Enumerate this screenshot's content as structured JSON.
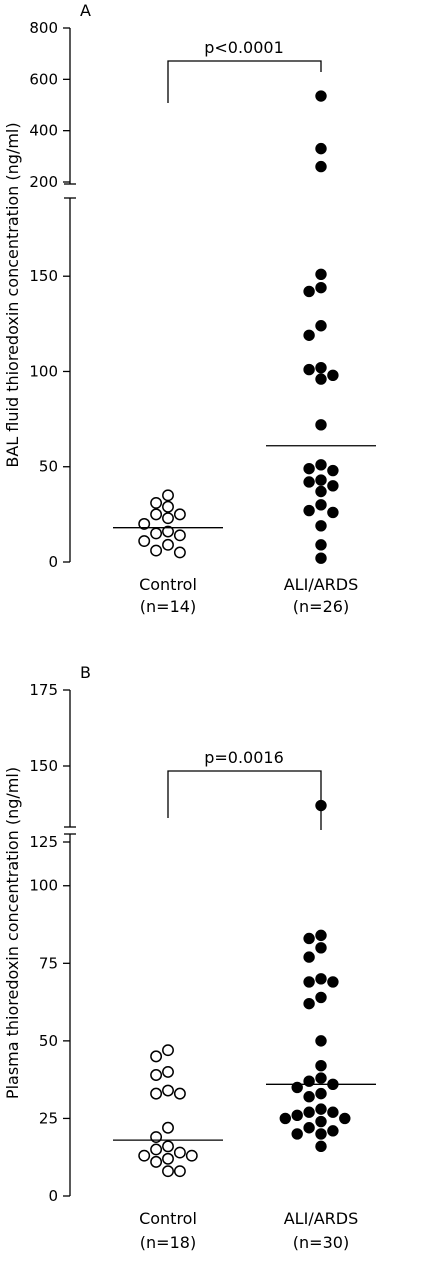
{
  "chart_data": [
    {
      "type": "scatter",
      "panel_label": "A",
      "ylabel": "BAL fluid thioredoxin concentration (ng/ml)",
      "yticks_lower": [
        "0",
        "50",
        "100",
        "150"
      ],
      "yticks_upper": [
        "200",
        "400",
        "600",
        "800"
      ],
      "y_break": true,
      "categories": [
        {
          "label": "Control",
          "n_label": "(n=14)"
        },
        {
          "label": "ALI/ARDS",
          "n_label": "(n=26)"
        }
      ],
      "p_value": "p<0.0001",
      "series": [
        {
          "name": "Control",
          "marker": "open",
          "median": 18,
          "values": [
            35,
            31,
            29,
            25,
            25,
            23,
            20,
            16,
            15,
            14,
            11,
            9,
            6,
            5
          ]
        },
        {
          "name": "ALI/ARDS",
          "marker": "filled",
          "median": 61,
          "values": [
            535,
            330,
            260,
            151,
            144,
            142,
            124,
            119,
            102,
            101,
            98,
            96,
            72,
            51,
            49,
            48,
            43,
            42,
            40,
            37,
            30,
            27,
            26,
            19,
            9,
            2
          ]
        }
      ]
    },
    {
      "type": "scatter",
      "panel_label": "B",
      "ylabel": "Plasma thioredoxin concentration (ng/ml)",
      "yticks_lower": [
        "0",
        "25",
        "50",
        "75",
        "100"
      ],
      "yticks_upper": [
        "125",
        "150",
        "175"
      ],
      "y_break": true,
      "categories": [
        {
          "label": "Control",
          "n_label": "(n=18)"
        },
        {
          "label": "ALI/ARDS",
          "n_label": "(n=30)"
        }
      ],
      "p_value": "p=0.0016",
      "series": [
        {
          "name": "Control",
          "marker": "open",
          "median": 18,
          "values": [
            47,
            45,
            40,
            39,
            34,
            33,
            33,
            22,
            19,
            16,
            15,
            14,
            13,
            13,
            12,
            11,
            8,
            8
          ]
        },
        {
          "name": "ALI/ARDS",
          "marker": "filled",
          "median": 36,
          "values": [
            137,
            84,
            83,
            80,
            77,
            70,
            69,
            69,
            64,
            62,
            50,
            42,
            38,
            37,
            36,
            35,
            33,
            32,
            28,
            27,
            27,
            26,
            25,
            25,
            24,
            22,
            21,
            20,
            20,
            16
          ]
        }
      ]
    }
  ]
}
